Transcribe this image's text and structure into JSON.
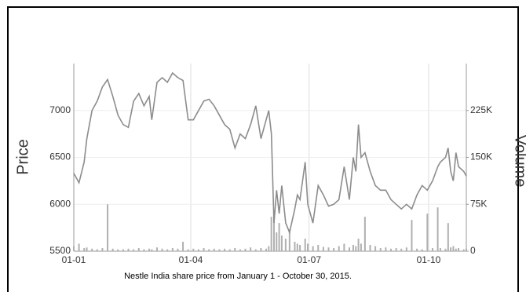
{
  "chart_data": {
    "type": "line",
    "caption": "Nestle India share price from January 1 - October 30, 2015.",
    "y_label": "Price",
    "y2_label": "Volume",
    "xlim": [
      0,
      302
    ],
    "xticks": [
      {
        "value": 0,
        "label": "01-01"
      },
      {
        "value": 90,
        "label": "01-04"
      },
      {
        "value": 181,
        "label": "01-07"
      },
      {
        "value": 273,
        "label": "01-10"
      }
    ],
    "ylim": [
      5500,
      7500
    ],
    "yticks": [
      5500,
      6000,
      6500,
      7000
    ],
    "y2lim": [
      0,
      300000
    ],
    "y2ticks": [
      {
        "value": 0,
        "label": "0"
      },
      {
        "value": 75000,
        "label": "75K"
      },
      {
        "value": 150000,
        "label": "150K"
      },
      {
        "value": 225000,
        "label": "225K"
      }
    ],
    "grid": true,
    "x": [
      0,
      4,
      8,
      10,
      14,
      18,
      22,
      26,
      30,
      34,
      38,
      42,
      46,
      50,
      54,
      58,
      60,
      64,
      68,
      72,
      76,
      80,
      84,
      88,
      92,
      96,
      100,
      104,
      108,
      112,
      116,
      120,
      124,
      128,
      132,
      136,
      140,
      144,
      148,
      150,
      152,
      154,
      156,
      158,
      160,
      163,
      166,
      170,
      172,
      174,
      178,
      180,
      184,
      188,
      192,
      196,
      200,
      204,
      208,
      212,
      215,
      217,
      219,
      221,
      224,
      228,
      232,
      236,
      240,
      244,
      248,
      252,
      256,
      260,
      264,
      268,
      272,
      276,
      280,
      282,
      286,
      288,
      290,
      292,
      294,
      296,
      300,
      302
    ],
    "series": [
      {
        "type": "line",
        "color": "#8c8c8c",
        "values": [
          6330,
          6230,
          6450,
          6700,
          7000,
          7100,
          7250,
          7330,
          7150,
          6950,
          6850,
          6820,
          7100,
          7180,
          7050,
          7150,
          6900,
          7300,
          7350,
          7300,
          7400,
          7350,
          7320,
          6900,
          6900,
          7000,
          7100,
          7120,
          7050,
          6950,
          6850,
          6800,
          6600,
          6750,
          6700,
          6850,
          7050,
          6700,
          6900,
          7000,
          6750,
          5800,
          6150,
          5900,
          6200,
          5800,
          5700,
          5950,
          6100,
          6050,
          6450,
          6000,
          5800,
          6200,
          6100,
          5980,
          6000,
          6050,
          6400,
          6050,
          6500,
          6350,
          6850,
          6500,
          6550,
          6350,
          6200,
          6150,
          6150,
          6050,
          6000,
          5950,
          6000,
          5950,
          6100,
          6200,
          6150,
          6250,
          6400,
          6450,
          6500,
          6600,
          6350,
          6250,
          6550,
          6400,
          6350,
          6300
        ]
      },
      {
        "type": "bar",
        "axis": "y2",
        "color": "#b0b0b0",
        "values": [
          8000,
          12000,
          5000,
          6000,
          4000,
          3000,
          5000,
          75000,
          4000,
          3000,
          3000,
          4000,
          3000,
          5000,
          3000,
          4000,
          3000,
          6000,
          4000,
          3000,
          5000,
          4000,
          15000,
          3000,
          4000,
          3000,
          5000,
          3000,
          4000,
          3000,
          4000,
          3000,
          5000,
          3000,
          4000,
          6000,
          3000,
          5000,
          4000,
          8000,
          55000,
          60000,
          30000,
          45000,
          25000,
          20000,
          35000,
          15000,
          12000,
          10000,
          20000,
          12000,
          8000,
          10000,
          7000,
          6000,
          5000,
          8000,
          12000,
          6000,
          10000,
          8000,
          20000,
          12000,
          55000,
          10000,
          8000,
          5000,
          6000,
          4000,
          5000,
          4000,
          6000,
          50000,
          4000,
          3000,
          60000,
          5000,
          70000,
          5000,
          4000,
          45000,
          6000,
          8000,
          4000,
          5000,
          3000,
          4000
        ]
      }
    ]
  }
}
